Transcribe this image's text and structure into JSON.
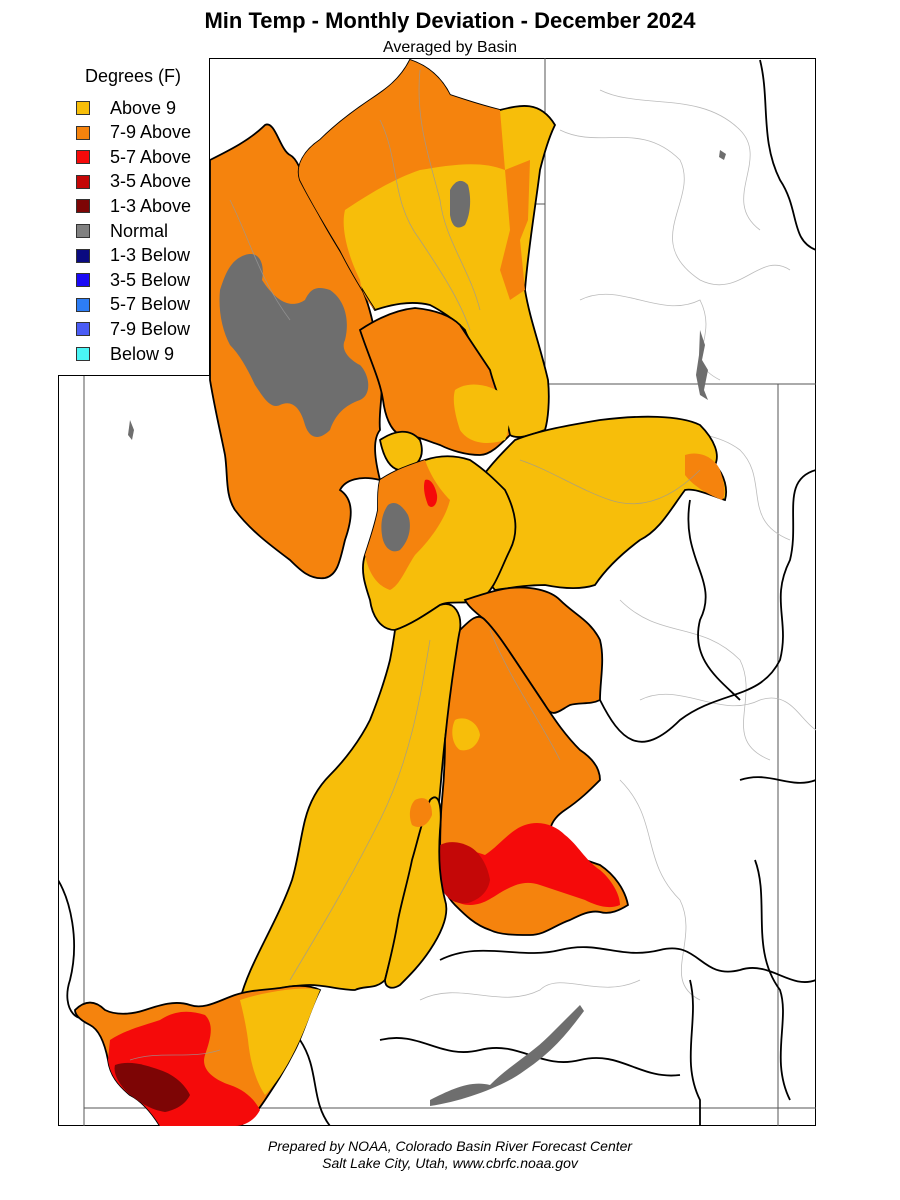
{
  "header": {
    "title": "Min Temp - Monthly Deviation - December 2024",
    "subtitle": "Averaged by Basin"
  },
  "legend": {
    "title": "Degrees (F)",
    "items": [
      {
        "label": "Above 9",
        "color": "#f7be0a"
      },
      {
        "label": "7-9 Above",
        "color": "#f5830d"
      },
      {
        "label": "5-7 Above",
        "color": "#f50a0a"
      },
      {
        "label": "3-5 Above",
        "color": "#c40707"
      },
      {
        "label": "1-3 Above",
        "color": "#7d0505"
      },
      {
        "label": "Normal",
        "color": "#808080"
      },
      {
        "label": "1-3 Below",
        "color": "#0a0a80"
      },
      {
        "label": "3-5 Below",
        "color": "#1a0af5"
      },
      {
        "label": "5-7 Below",
        "color": "#2d7df5"
      },
      {
        "label": "7-9 Below",
        "color": "#4a5cf5"
      },
      {
        "label": "Below 9",
        "color": "#4af5f5"
      }
    ]
  },
  "map": {
    "colors": {
      "above9": "#f7be0a",
      "above7to9": "#f5830d",
      "above5to7": "#f50a0a",
      "above3to5": "#c40707",
      "above1to3": "#7d0505",
      "normal": "#6e6e6e",
      "border": "#000000",
      "river": "#999999",
      "state_line": "#555555"
    }
  },
  "footer": {
    "line1": "Prepared by NOAA, Colorado Basin River Forecast Center",
    "line2": "Salt Lake City, Utah, www.cbrfc.noaa.gov"
  }
}
